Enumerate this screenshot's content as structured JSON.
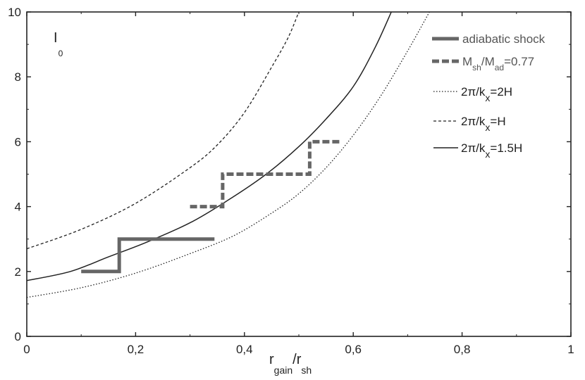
{
  "chart_data": {
    "type": "line",
    "title": "",
    "xlabel": {
      "main": "r",
      "sub1": "gain",
      "mid": "/r",
      "sub2": "sh"
    },
    "ylabel": {
      "main": "I",
      "sub": "0"
    },
    "xlim": [
      0,
      1
    ],
    "ylim": [
      0,
      10
    ],
    "xticks": [
      0,
      0.2,
      0.4,
      0.6,
      0.8,
      1
    ],
    "xtick_labels": [
      "0",
      "0,2",
      "0,4",
      "0,6",
      "0,8",
      "1"
    ],
    "yticks": [
      0,
      2,
      4,
      6,
      8,
      10
    ],
    "ytick_labels": [
      "0",
      "2",
      "4",
      "6",
      "8",
      "10"
    ],
    "grid": false,
    "legend_position": "top-right",
    "legend": [
      {
        "text": "adiabatic shock",
        "style": "thick-solid-gray"
      },
      {
        "text_parts": [
          "M",
          "sh",
          "/M",
          "ad",
          "=0.77"
        ],
        "style": "thick-dashed-gray"
      },
      {
        "text_parts": [
          "2π/k",
          "x",
          "=2H"
        ],
        "style": "dotted"
      },
      {
        "text_parts": [
          "2π/k",
          "x",
          "=H"
        ],
        "style": "dashed"
      },
      {
        "text_parts": [
          "2π/k",
          "x",
          "=1.5H"
        ],
        "style": "solid"
      }
    ],
    "series": [
      {
        "style": "dotted",
        "points": [
          [
            0,
            1.2
          ],
          [
            0.1,
            1.5
          ],
          [
            0.2,
            1.95
          ],
          [
            0.3,
            2.55
          ],
          [
            0.38,
            3.1
          ],
          [
            0.45,
            3.8
          ],
          [
            0.5,
            4.4
          ],
          [
            0.55,
            5.2
          ],
          [
            0.6,
            6.2
          ],
          [
            0.65,
            7.4
          ],
          [
            0.7,
            8.8
          ],
          [
            0.74,
            10
          ]
        ]
      },
      {
        "style": "dashed",
        "points": [
          [
            0,
            2.7
          ],
          [
            0.1,
            3.3
          ],
          [
            0.2,
            4.1
          ],
          [
            0.3,
            5.2
          ],
          [
            0.35,
            5.9
          ],
          [
            0.4,
            6.9
          ],
          [
            0.45,
            8.3
          ],
          [
            0.48,
            9.2
          ],
          [
            0.5,
            10
          ]
        ]
      },
      {
        "style": "solid",
        "points": [
          [
            0,
            1.72
          ],
          [
            0.08,
            2.0
          ],
          [
            0.15,
            2.45
          ],
          [
            0.22,
            2.9
          ],
          [
            0.3,
            3.5
          ],
          [
            0.37,
            4.2
          ],
          [
            0.44,
            5.0
          ],
          [
            0.5,
            5.85
          ],
          [
            0.55,
            6.7
          ],
          [
            0.6,
            7.7
          ],
          [
            0.64,
            8.9
          ],
          [
            0.67,
            10
          ]
        ]
      },
      {
        "style": "thick-solid-gray",
        "points": [
          [
            0.1,
            2
          ],
          [
            0.17,
            2
          ],
          [
            0.17,
            3
          ],
          [
            0.345,
            3
          ]
        ]
      },
      {
        "style": "thick-dashed-gray",
        "points": [
          [
            0.3,
            4
          ],
          [
            0.36,
            4
          ],
          [
            0.36,
            5
          ],
          [
            0.52,
            5
          ],
          [
            0.52,
            6
          ],
          [
            0.575,
            6
          ]
        ]
      }
    ]
  }
}
